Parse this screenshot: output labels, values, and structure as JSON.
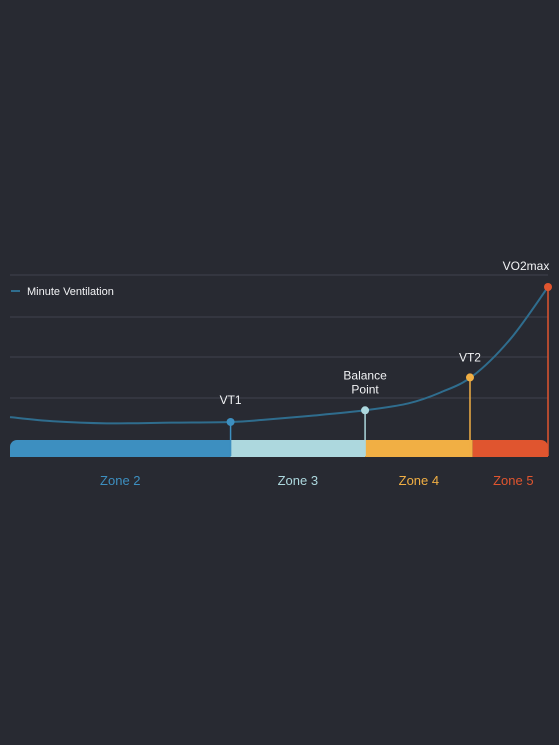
{
  "colors": {
    "background": "#282a32",
    "grid": "#3f434d",
    "line": "#2f6d8e",
    "label": "#f2f3f5",
    "zone2": "#3d8fc0",
    "zone3": "#add8de",
    "zone4": "#f1af44",
    "zone5": "#e0552f"
  },
  "chart_data": {
    "type": "line",
    "title": "",
    "xlabel": "",
    "ylabel": "",
    "grid": true,
    "legend": {
      "position": "top-left",
      "entries": [
        "Minute Ventilation"
      ]
    },
    "series": [
      {
        "name": "Minute Ventilation",
        "color": "#2f6d8e",
        "x": [
          0,
          8,
          18,
          30,
          41,
          47,
          56,
          66,
          74,
          80,
          86,
          93,
          100
        ],
        "y": [
          0.05,
          0.02,
          0.005,
          0.01,
          0.015,
          0.03,
          0.06,
          0.1,
          0.15,
          0.23,
          0.35,
          0.62,
          1.0
        ]
      }
    ],
    "markers": [
      {
        "label": "VT1",
        "x": 41,
        "y": 0.015,
        "color": "#3d8fc0"
      },
      {
        "label": "Balance Point",
        "x": 66,
        "y": 0.1,
        "color": "#add8de"
      },
      {
        "label": "VT2",
        "x": 85.5,
        "y": 0.34,
        "color": "#f1af44"
      },
      {
        "label": "VO2max",
        "x": 100,
        "y": 1.0,
        "color": "#e0552f"
      }
    ],
    "zones": [
      {
        "label": "Zone 2",
        "start": 0,
        "end": 41,
        "color": "#3d8fc0"
      },
      {
        "label": "Zone 3",
        "start": 41,
        "end": 66,
        "color": "#add8de"
      },
      {
        "label": "Zone 4",
        "start": 66,
        "end": 86,
        "color": "#f1af44"
      },
      {
        "label": "Zone 5",
        "start": 86,
        "end": 100,
        "color": "#e0552f"
      }
    ]
  }
}
